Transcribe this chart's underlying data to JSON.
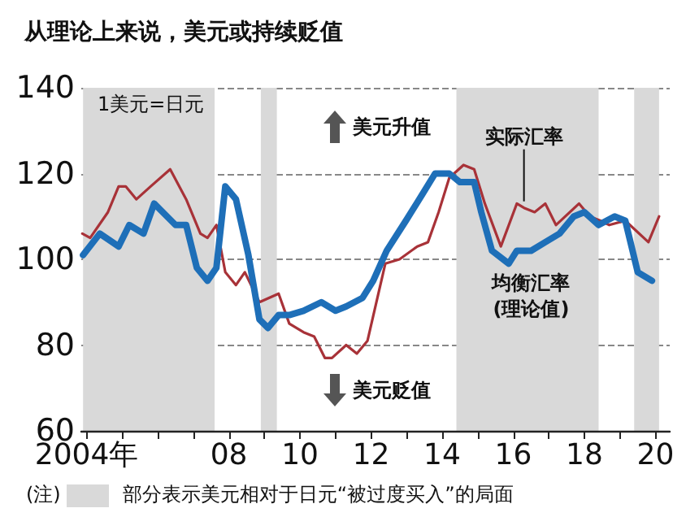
{
  "chart_data": {
    "type": "line",
    "title": "从理论上来说，美元或持续贬值",
    "ylabel": "1美元=日元",
    "xlim": [
      2003.85,
      2020.4
    ],
    "ylim": [
      60,
      140
    ],
    "yticks": [
      60,
      80,
      100,
      120,
      140
    ],
    "xticks": [
      {
        "value": 2004,
        "label": "2004年"
      },
      {
        "value": 2005,
        "label": null
      },
      {
        "value": 2006,
        "label": null
      },
      {
        "value": 2007,
        "label": null
      },
      {
        "value": 2008,
        "label": "08"
      },
      {
        "value": 2009,
        "label": null
      },
      {
        "value": 2010,
        "label": "10"
      },
      {
        "value": 2011,
        "label": null
      },
      {
        "value": 2012,
        "label": "12"
      },
      {
        "value": 2013,
        "label": null
      },
      {
        "value": 2014,
        "label": "14"
      },
      {
        "value": 2015,
        "label": null
      },
      {
        "value": 2016,
        "label": "16"
      },
      {
        "value": 2017,
        "label": null
      },
      {
        "value": 2018,
        "label": "18"
      },
      {
        "value": 2019,
        "label": null
      },
      {
        "value": 2020,
        "label": "20"
      }
    ],
    "grid": "y",
    "legend": false,
    "marker": "none",
    "line_style": "solid",
    "series": [
      {
        "name": "实际汇率",
        "color": "#a83238",
        "x": [
          2003.88,
          2004.1,
          2004.6,
          2004.9,
          2005.1,
          2005.4,
          2005.8,
          2006.35,
          2006.8,
          2007.2,
          2007.4,
          2007.65,
          2007.9,
          2008.2,
          2008.45,
          2008.86,
          2009.4,
          2009.7,
          2010.1,
          2010.4,
          2010.7,
          2010.9,
          2011.3,
          2011.6,
          2011.9,
          2012.4,
          2012.8,
          2013.3,
          2013.6,
          2013.9,
          2014.2,
          2014.6,
          2014.9,
          2015.2,
          2015.65,
          2016.1,
          2016.3,
          2016.6,
          2016.9,
          2017.2,
          2017.85,
          2018.15,
          2018.45,
          2018.7,
          2019.15,
          2019.8,
          2020.1
        ],
        "values": [
          106,
          105,
          111,
          117,
          117,
          114,
          117,
          121,
          114,
          106,
          105,
          108,
          97,
          94,
          97,
          90,
          92,
          85,
          83,
          82,
          77,
          77,
          80,
          78,
          81,
          99,
          100,
          103,
          104,
          111,
          119,
          122,
          121,
          113,
          103,
          113,
          112,
          111,
          113,
          108,
          113,
          110,
          109,
          108,
          109,
          104,
          110
        ]
      },
      {
        "name": "均衡汇率(理论值)",
        "color": "#1e6fb8",
        "x": [
          2003.9,
          2004.37,
          2004.9,
          2005.2,
          2005.6,
          2005.9,
          2006.5,
          2006.8,
          2007.1,
          2007.4,
          2007.65,
          2007.9,
          2008.2,
          2008.55,
          2008.86,
          2009.1,
          2009.4,
          2009.7,
          2010.1,
          2010.6,
          2011.0,
          2011.3,
          2011.76,
          2012.06,
          2012.44,
          2012.98,
          2013.43,
          2013.8,
          2014.2,
          2014.5,
          2014.9,
          2015.1,
          2015.4,
          2015.87,
          2016.1,
          2016.5,
          2016.9,
          2017.3,
          2017.7,
          2018.0,
          2018.4,
          2018.85,
          2019.15,
          2019.5,
          2019.9
        ],
        "values": [
          101,
          106,
          103,
          108,
          106,
          113,
          108,
          108,
          98,
          95,
          98,
          117,
          114,
          101,
          86,
          84,
          87,
          87,
          88,
          90,
          88,
          89,
          91,
          95,
          102,
          109,
          115,
          120,
          120,
          118,
          118,
          111,
          102,
          99,
          102,
          102,
          104,
          106,
          110,
          111,
          108,
          110,
          109,
          97,
          95
        ]
      }
    ],
    "bands": [
      {
        "axis": "x",
        "from": 2003.9,
        "to": 2007.6,
        "color": "#d9d9d9"
      },
      {
        "axis": "x",
        "from": 2008.9,
        "to": 2009.35,
        "color": "#d9d9d9"
      },
      {
        "axis": "x",
        "from": 2014.4,
        "to": 2018.4,
        "color": "#d9d9d9"
      },
      {
        "axis": "x",
        "from": 2019.4,
        "to": 2020.1,
        "color": "#d9d9d9"
      }
    ],
    "annotations": [
      "(注)",
      "部分表示美元相对于日元“被过度买入”的局面",
      "美元升值",
      "美元贬值"
    ]
  }
}
